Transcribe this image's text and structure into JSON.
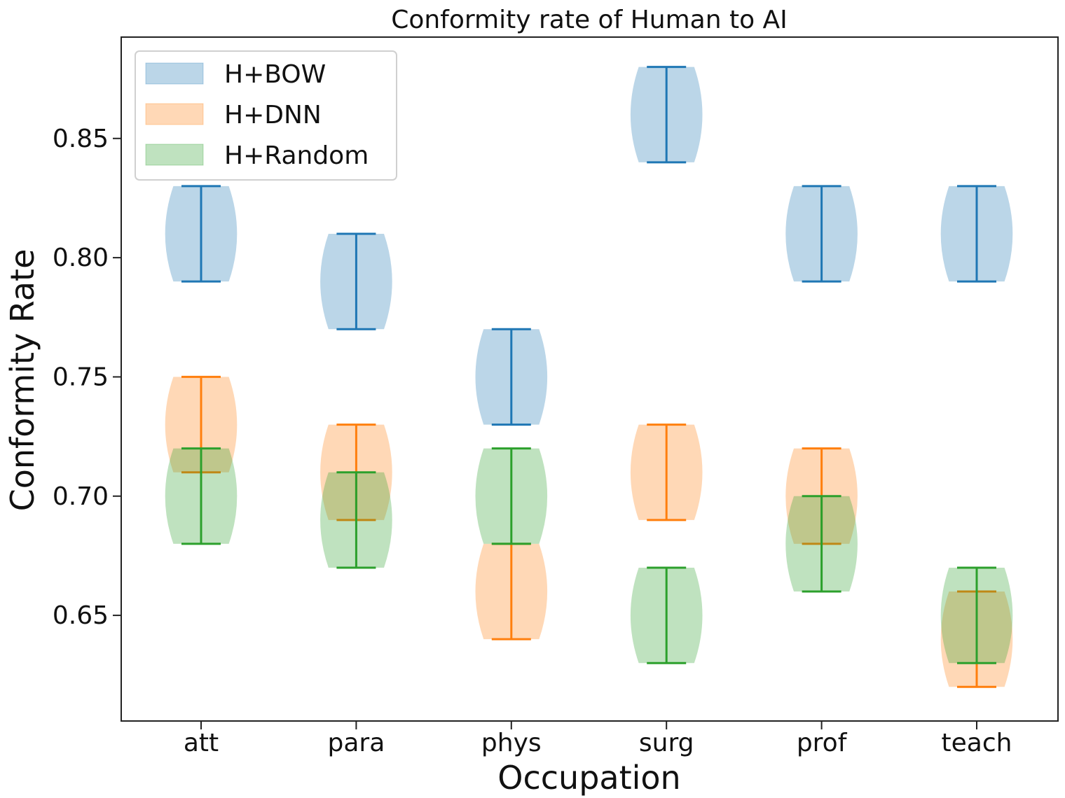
{
  "chart_data": {
    "type": "violin",
    "title": "Conformity rate of Human to AI",
    "xlabel": "Occupation",
    "ylabel": "Conformity Rate",
    "categories": [
      "att",
      "para",
      "phys",
      "surg",
      "prof",
      "teach"
    ],
    "ylim": [
      0.6057,
      0.8925
    ],
    "yticks": [
      0.65,
      0.7,
      0.75,
      0.8,
      0.85
    ],
    "ytick_labels": [
      "0.65",
      "0.70",
      "0.75",
      "0.80",
      "0.85"
    ],
    "legend_position": "upper-left",
    "series": [
      {
        "name": "H+BOW",
        "fill": "#1f77b4",
        "line": "#1f77b4",
        "ranges": [
          [
            0.79,
            0.83
          ],
          [
            0.77,
            0.81
          ],
          [
            0.73,
            0.77
          ],
          [
            0.84,
            0.88
          ],
          [
            0.79,
            0.83
          ],
          [
            0.79,
            0.83
          ]
        ]
      },
      {
        "name": "H+DNN",
        "fill": "#ff7f0e",
        "line": "#ff7f0e",
        "ranges": [
          [
            0.71,
            0.75
          ],
          [
            0.69,
            0.73
          ],
          [
            0.64,
            0.68
          ],
          [
            0.69,
            0.73
          ],
          [
            0.68,
            0.72
          ],
          [
            0.62,
            0.66
          ]
        ]
      },
      {
        "name": "H+Random",
        "fill": "#2ca02c",
        "line": "#2ca02c",
        "ranges": [
          [
            0.68,
            0.72
          ],
          [
            0.67,
            0.71
          ],
          [
            0.68,
            0.72
          ],
          [
            0.63,
            0.67
          ],
          [
            0.66,
            0.7
          ],
          [
            0.63,
            0.67
          ]
        ]
      }
    ]
  }
}
